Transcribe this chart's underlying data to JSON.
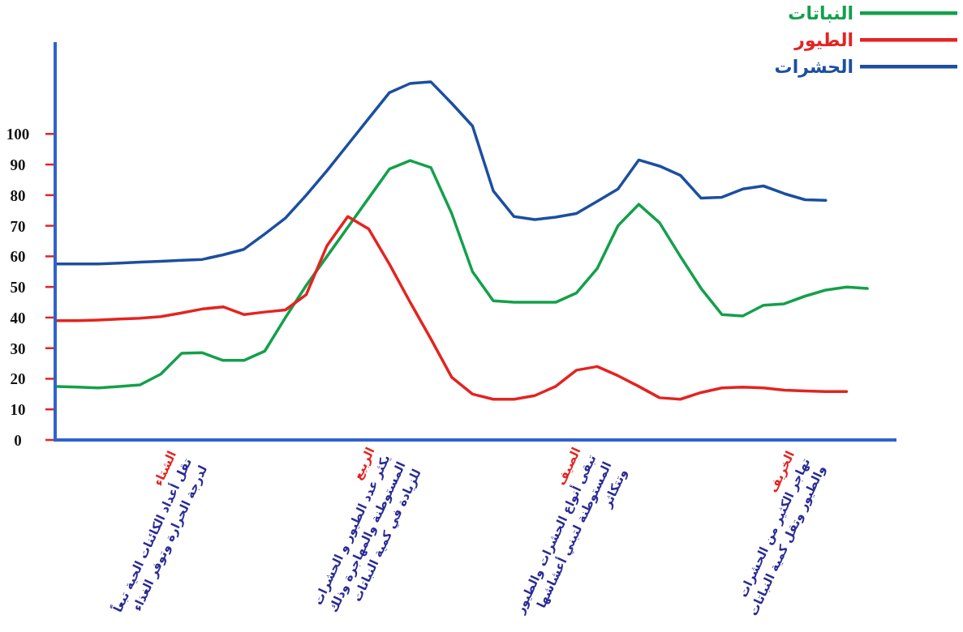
{
  "chart_data": {
    "type": "line",
    "categories": [
      null,
      null,
      null,
      null,
      null,
      null,
      null,
      null,
      null,
      null,
      null,
      null,
      null,
      null,
      null,
      null,
      null,
      null,
      null,
      null,
      null,
      null,
      null,
      null,
      null,
      null,
      null,
      null,
      null,
      null,
      null,
      null,
      null,
      null,
      null,
      null,
      null,
      null,
      null,
      null,
      null
    ],
    "series": [
      {
        "name": "النباتات",
        "color": "#13a04a",
        "values": [
          17.5,
          17.3,
          17,
          17.5,
          18,
          21.5,
          28.3,
          28.5,
          26,
          26,
          29,
          40,
          50.5,
          60,
          69.5,
          79,
          88.5,
          91.3,
          89,
          74,
          55,
          45.5,
          45,
          45,
          45,
          48,
          56,
          70,
          77,
          71,
          60,
          49.5,
          41,
          40.5,
          44,
          44.5,
          47,
          49,
          50,
          49.5,
          null
        ]
      },
      {
        "name": "الطيور",
        "color": "#e42320",
        "values": [
          39,
          39,
          39.2,
          39.5,
          39.8,
          40.3,
          41.5,
          42.8,
          43.5,
          41,
          41.8,
          42.5,
          47.5,
          63.5,
          73,
          69,
          57.5,
          45,
          33,
          20.5,
          15,
          13.3,
          13.3,
          14.5,
          17.5,
          22.8,
          24,
          21,
          17.5,
          13.8,
          13.3,
          15.5,
          17,
          17.3,
          17,
          16.3,
          16,
          15.8,
          15.8,
          null,
          null
        ]
      },
      {
        "name": "الحشرات",
        "color": "#1b4fa0",
        "values": [
          57.5,
          57.5,
          57.5,
          57.8,
          58.1,
          58.4,
          58.7,
          59,
          60.5,
          62.3,
          67.3,
          72.5,
          80,
          88,
          96.5,
          105,
          113.5,
          116.5,
          117,
          110,
          102.6,
          81.4,
          73,
          72,
          72.8,
          74,
          78,
          82,
          91.5,
          89.5,
          86.5,
          79,
          79.3,
          82,
          83,
          80.5,
          78.5,
          78.3,
          null,
          null,
          null
        ]
      }
    ],
    "ylim": [
      0,
      130
    ],
    "yticks": [
      0,
      10,
      20,
      30,
      40,
      50,
      60,
      70,
      80,
      90,
      100
    ],
    "legend": "top right",
    "grid": false,
    "marker": "none",
    "line_style": "solid",
    "annotations": [
      "الشتاء",
      "تقل أعداد الكائنات الحية تبعاً لدرجة الحرارة وتوفر الغذاء",
      "الربيع",
      "يكثر عدد الطيور و الحشرات المستوطنة والمهاجرة وذلك للزيادة في كمية النباتات",
      "الصيف",
      "تبقى أنواع الحشرات والطيور المستوطنة لتبني أعشاشها وتتكاثر",
      "الخريف",
      "تهاجر الكثير من الحشرات والطيور وتقل كمية النباتات"
    ]
  }
}
